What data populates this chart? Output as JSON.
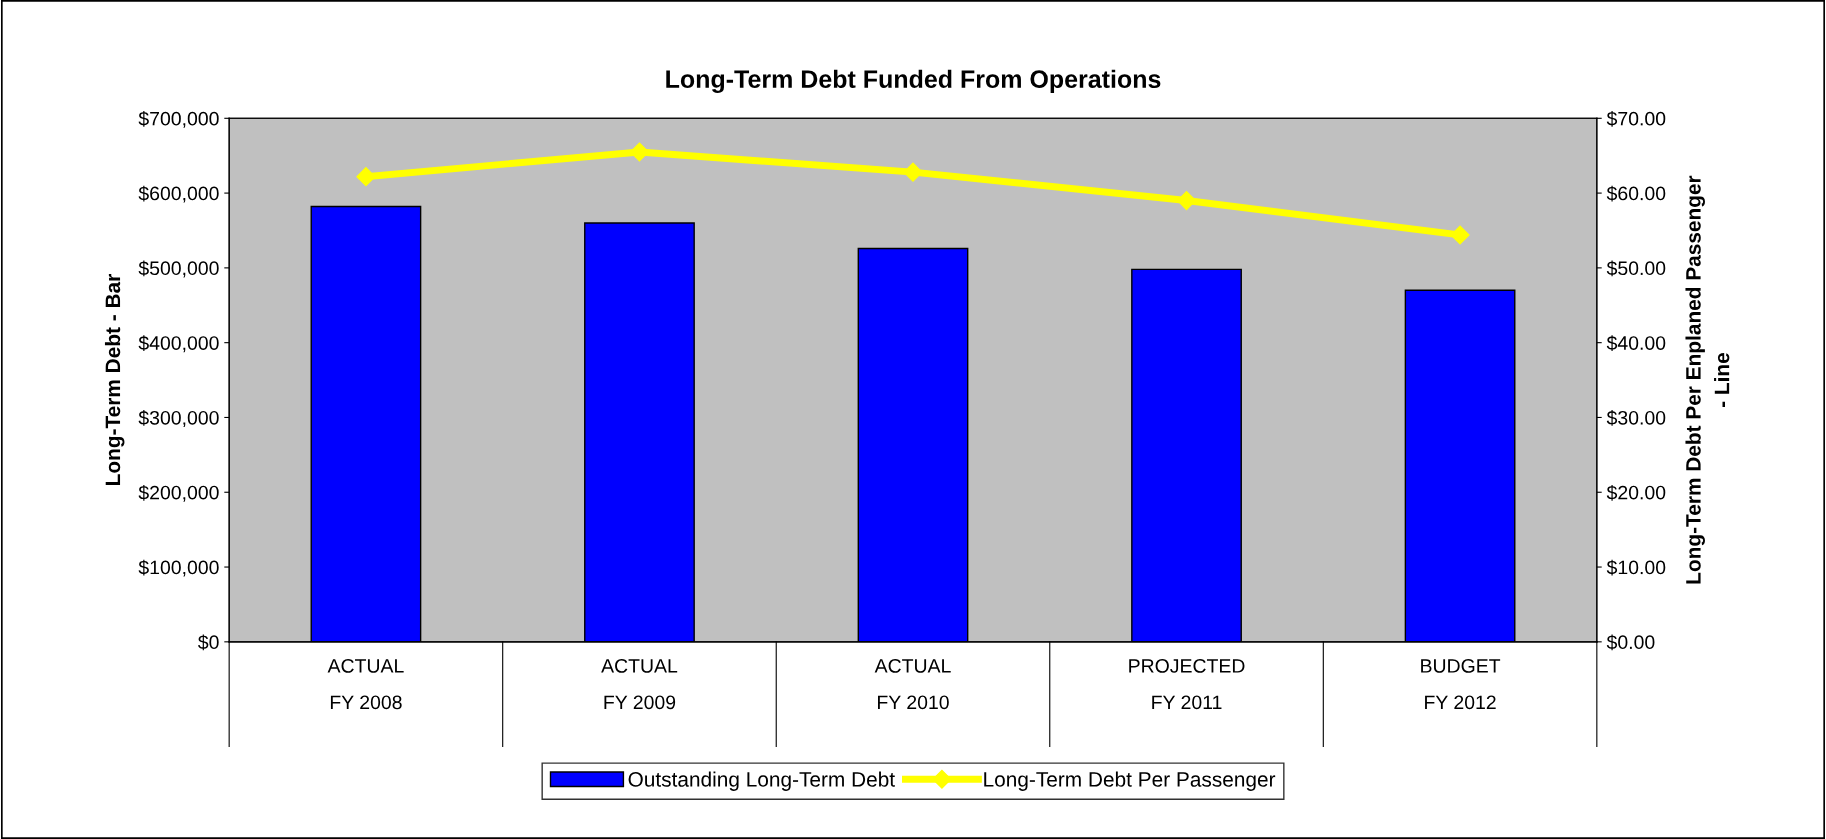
{
  "chart_data": {
    "type": "bar",
    "title": "Long-Term Debt Funded From Operations",
    "categories": [
      "ACTUAL\nFY 2008",
      "ACTUAL\nFY 2009",
      "ACTUAL\nFY 2010",
      "PROJECTED\nFY 2011",
      "BUDGET\nFY 2012"
    ],
    "series": [
      {
        "name": "Outstanding Long-Term Debt",
        "color": "#0000ff",
        "values": [
          582000,
          560000,
          526000,
          498000,
          470000
        ]
      },
      {
        "name": "Long-Term Debt Per Passenger",
        "type": "line",
        "axis": "y2",
        "color": "#ffff00",
        "marker": "diamond",
        "values": [
          62.2,
          65.5,
          62.8,
          59.0,
          54.4
        ]
      }
    ],
    "ylabel": "Long-Term Debt - Bar",
    "y2label": "Long-Term Debt Per Enplaned Passenger\n- Line",
    "ylim": [
      0,
      700000
    ],
    "yticks": [
      {
        "value": 0,
        "label": "$0"
      },
      {
        "value": 100000,
        "label": "$100,000"
      },
      {
        "value": 200000,
        "label": "$200,000"
      },
      {
        "value": 300000,
        "label": "$300,000"
      },
      {
        "value": 400000,
        "label": "$400,000"
      },
      {
        "value": 500000,
        "label": "$500,000"
      },
      {
        "value": 600000,
        "label": "$600,000"
      },
      {
        "value": 700000,
        "label": "$700,000"
      }
    ],
    "y2lim": [
      0,
      70
    ],
    "y2ticks": [
      {
        "value": 0,
        "label": "$0.00"
      },
      {
        "value": 10,
        "label": "$10.00"
      },
      {
        "value": 20,
        "label": "$20.00"
      },
      {
        "value": 30,
        "label": "$30.00"
      },
      {
        "value": 40,
        "label": "$40.00"
      },
      {
        "value": 50,
        "label": "$50.00"
      },
      {
        "value": 60,
        "label": "$60.00"
      },
      {
        "value": 70,
        "label": "$70.00"
      }
    ],
    "grid": false,
    "legend": "bottom"
  }
}
